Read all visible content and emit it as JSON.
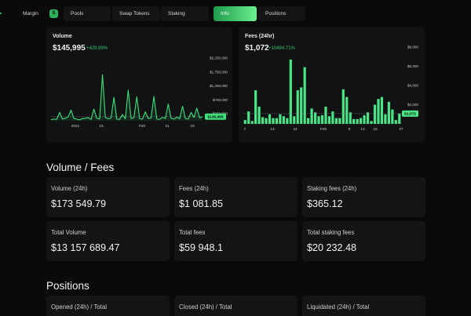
{
  "nav": {
    "items": [
      {
        "label": "Margin",
        "active": false
      },
      {
        "label": "Pools",
        "active": false
      },
      {
        "label": "Swap Tokens",
        "active": false
      },
      {
        "label": "Staking",
        "active": false
      },
      {
        "label": "Info",
        "active": true
      },
      {
        "label": "Positions",
        "active": false
      }
    ],
    "logo_letter": "S"
  },
  "chart_data": [
    {
      "type": "line",
      "title": "Volume",
      "headline_value": "$145,995",
      "change": "+429.89%",
      "x_ticks": [
        "2021",
        "15",
        "Feb",
        "11",
        "23"
      ],
      "y_ticks": [
        "$2,250,000",
        "$1,750,000",
        "$1,250,000",
        "$750,000",
        "$250,000"
      ],
      "current_label": "$145,995",
      "color": "#3ee07a",
      "ylim": [
        0,
        2250000
      ],
      "values": [
        40000,
        60000,
        50000,
        300000,
        60000,
        90000,
        140000,
        380000,
        80000,
        60000,
        30000,
        80000,
        90000,
        110000,
        50000,
        420000,
        90000,
        60000,
        1650000,
        120000,
        70000,
        100000,
        840000,
        60000,
        50000,
        220000,
        70000,
        1100000,
        80000,
        110000,
        860000,
        70000,
        60000,
        320000,
        80000,
        100000,
        870000,
        60000,
        50000,
        120000,
        80000,
        600000,
        90000,
        60000,
        130000,
        70000,
        520000,
        80000,
        60000,
        300000,
        120000,
        450000,
        100000,
        145995
      ]
    },
    {
      "type": "bar",
      "title": "Fees (24hr)",
      "headline_value": "$1,072",
      "change": "+10494.71%",
      "x_ticks": [
        "7",
        "13",
        "24",
        "Feb",
        "9",
        "13",
        "18",
        "27"
      ],
      "y_ticks": [
        "$8,000",
        "$6,000",
        "$4,000",
        "$2,000"
      ],
      "current_label": "$1,072",
      "color": "#4be486",
      "ylim": [
        0,
        8000
      ],
      "values": [
        400,
        1300,
        300,
        3500,
        1800,
        700,
        600,
        1000,
        600,
        600,
        1000,
        800,
        600,
        6700,
        800,
        3500,
        3800,
        5900,
        600,
        1600,
        1200,
        800,
        900,
        1800,
        800,
        1300,
        600,
        600,
        3600,
        2800,
        1200,
        500,
        500,
        600,
        900,
        1200,
        300,
        2000,
        2600,
        2800,
        1000,
        2300,
        1500,
        400,
        1072
      ]
    }
  ],
  "volume_fees": {
    "title": "Volume / Fees",
    "stats": [
      {
        "label": "Volume (24h)",
        "value": "$173 549.79"
      },
      {
        "label": "Fees (24h)",
        "value": "$1 081.85"
      },
      {
        "label": "Staking fees (24h)",
        "value": "$365.12"
      },
      {
        "label": "Total Volume",
        "value": "$13 157 689.47"
      },
      {
        "label": "Total fees",
        "value": "$59 948.1"
      },
      {
        "label": "Total staking fees",
        "value": "$20 232.48"
      }
    ]
  },
  "positions": {
    "title": "Positions",
    "stats": [
      {
        "label": "Opened (24h) / Total"
      },
      {
        "label": "Closed (24h) / Total"
      },
      {
        "label": "Liquidated (24h) / Total"
      }
    ]
  }
}
